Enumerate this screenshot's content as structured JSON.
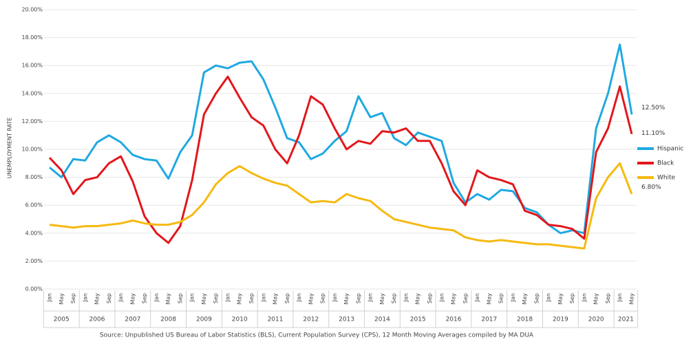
{
  "chart_data": {
    "type": "line",
    "y_label": "UNEMPLOYMENT RATE",
    "source": "Source: Unpublished US Bureau of Labor Statistics (BLS), Current Population Survey (CPS), 12 Month Moving Averages compiled by MA DUA",
    "categories": [
      "Jan",
      "May",
      "Sep",
      "Jan",
      "May",
      "Sep",
      "Jan",
      "May",
      "Sep",
      "Jan",
      "May",
      "Sep",
      "Jan",
      "May",
      "Sep",
      "Jan",
      "May",
      "Sep",
      "Jan",
      "May",
      "Sep",
      "Jan",
      "May",
      "Sep",
      "Jan",
      "May",
      "Sep",
      "Jan",
      "May",
      "Sep",
      "Jan",
      "May",
      "Sep",
      "Jan",
      "May",
      "Sep",
      "Jan",
      "May",
      "Sep",
      "Jan",
      "May",
      "Sep",
      "Jan",
      "May",
      "Sep",
      "Jan",
      "May",
      "Sep",
      "Jan",
      "May"
    ],
    "years": [
      "2005",
      "2006",
      "2007",
      "2008",
      "2009",
      "2010",
      "2011",
      "2012",
      "2013",
      "2014",
      "2015",
      "2016",
      "2017",
      "2018",
      "2019",
      "2020",
      "2021"
    ],
    "series": [
      {
        "name": "Hispanic",
        "color": "#1fa9e1",
        "end_label": "12.50%",
        "values": [
          8.7,
          8.0,
          9.3,
          9.2,
          10.5,
          11.0,
          10.5,
          9.6,
          9.3,
          9.2,
          7.9,
          9.8,
          11.0,
          15.5,
          16.0,
          15.8,
          16.2,
          16.3,
          15.0,
          13.0,
          10.8,
          10.5,
          9.3,
          9.7,
          10.6,
          11.3,
          13.8,
          12.3,
          12.6,
          10.8,
          10.3,
          11.2,
          10.9,
          10.6,
          7.6,
          6.2,
          6.8,
          6.4,
          7.1,
          7.0,
          5.8,
          5.5,
          4.6,
          4.0,
          4.2,
          4.0,
          11.5,
          14.0,
          17.5,
          12.5
        ]
      },
      {
        "name": "Black",
        "color": "#e3161b",
        "end_label": "11.10%",
        "values": [
          9.4,
          8.5,
          6.8,
          7.8,
          8.0,
          9.0,
          9.5,
          7.7,
          5.2,
          4.0,
          3.3,
          4.5,
          7.8,
          12.5,
          14.0,
          15.2,
          13.7,
          12.3,
          11.7,
          10.0,
          9.0,
          11.0,
          13.8,
          13.2,
          11.5,
          10.0,
          10.6,
          10.4,
          11.3,
          11.2,
          11.5,
          10.6,
          10.6,
          9.0,
          7.0,
          6.0,
          8.5,
          8.0,
          7.8,
          7.5,
          5.6,
          5.3,
          4.6,
          4.5,
          4.3,
          3.6,
          9.8,
          11.5,
          14.5,
          11.1
        ]
      },
      {
        "name": "White",
        "color": "#f6b910",
        "end_label": "6.80%",
        "values": [
          4.6,
          4.5,
          4.4,
          4.5,
          4.5,
          4.6,
          4.7,
          4.9,
          4.7,
          4.6,
          4.6,
          4.8,
          5.3,
          6.2,
          7.5,
          8.3,
          8.8,
          8.3,
          7.9,
          7.6,
          7.4,
          6.8,
          6.2,
          6.3,
          6.2,
          6.8,
          6.5,
          6.3,
          5.6,
          5.0,
          4.8,
          4.6,
          4.4,
          4.3,
          4.2,
          3.7,
          3.5,
          3.4,
          3.5,
          3.4,
          3.3,
          3.2,
          3.2,
          3.1,
          3.0,
          2.9,
          6.5,
          8.0,
          9.0,
          6.8
        ]
      }
    ],
    "ylim": [
      0,
      20
    ],
    "yticks": [
      {
        "value": 0,
        "label": "0.00%"
      },
      {
        "value": 2,
        "label": "2.00%"
      },
      {
        "value": 4,
        "label": "4.00%"
      },
      {
        "value": 6,
        "label": "6.00%"
      },
      {
        "value": 8,
        "label": "8.00%"
      },
      {
        "value": 10,
        "label": "10.00%"
      },
      {
        "value": 12,
        "label": "12.00%"
      },
      {
        "value": 14,
        "label": "14.00%"
      },
      {
        "value": 16,
        "label": "16.00%"
      },
      {
        "value": 18,
        "label": "18.00%"
      },
      {
        "value": 20,
        "label": "20.00%"
      }
    ],
    "grid": true
  }
}
